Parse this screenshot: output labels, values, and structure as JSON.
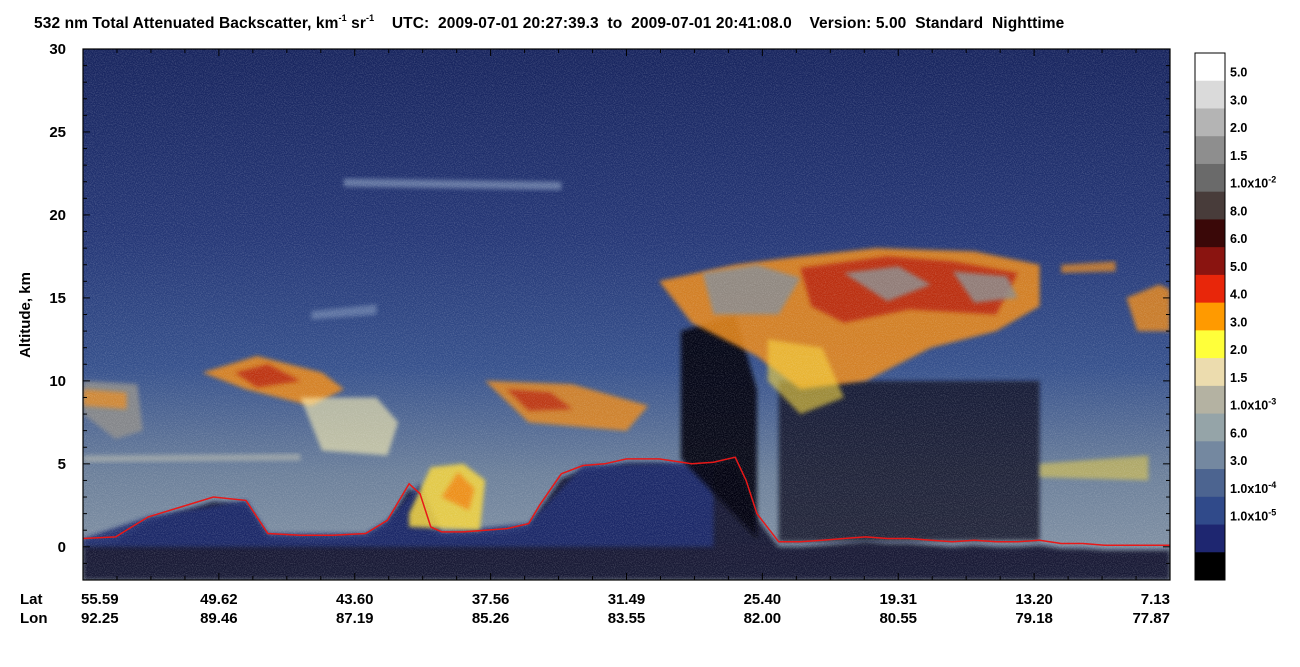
{
  "chart_data": {
    "type": "heatmap",
    "title": {
      "quantity": "532 nm Total Attenuated Backscatter, km",
      "unit_exp1": "-1",
      "unit_mid": " sr",
      "unit_exp2": "-1",
      "utc_text": "    UTC:  2009-07-01 20:27:39.3  to  2009-07-01 20:41:08.0    Version: 5.00  Standard  Nighttime"
    },
    "ylabel": "Altitude, km",
    "ylim": [
      -2,
      30
    ],
    "yticks": [
      0,
      5,
      10,
      15,
      20,
      25,
      30
    ],
    "x_rows": [
      {
        "label": "Lat",
        "values": [
          "55.59",
          "49.62",
          "43.60",
          "37.56",
          "31.49",
          "25.40",
          "19.31",
          "13.20",
          "7.13"
        ]
      },
      {
        "label": "Lon",
        "values": [
          "92.25",
          "89.46",
          "87.19",
          "85.26",
          "83.55",
          "82.00",
          "80.55",
          "79.18",
          "77.87"
        ]
      }
    ],
    "colorbar": {
      "colors": [
        "#ffffff",
        "#dadada",
        "#b4b4b4",
        "#8e8e8e",
        "#6a6a6a",
        "#483c3a",
        "#3a0808",
        "#8a1410",
        "#e8260a",
        "#ff9a00",
        "#ffff3a",
        "#ecdcae",
        "#b4b2a2",
        "#95a4a8",
        "#7488a0",
        "#4c6490",
        "#304a8a",
        "#1e2670",
        "#000000"
      ],
      "labels": [
        {
          "base": "5.0",
          "exp": ""
        },
        {
          "base": "3.0",
          "exp": ""
        },
        {
          "base": "2.0",
          "exp": ""
        },
        {
          "base": "1.5",
          "exp": ""
        },
        {
          "base": "1.0x10",
          "exp": "-2"
        },
        {
          "base": "8.0",
          "exp": ""
        },
        {
          "base": "6.0",
          "exp": ""
        },
        {
          "base": "5.0",
          "exp": ""
        },
        {
          "base": "4.0",
          "exp": ""
        },
        {
          "base": "3.0",
          "exp": ""
        },
        {
          "base": "2.0",
          "exp": ""
        },
        {
          "base": "1.5",
          "exp": ""
        },
        {
          "base": "1.0x10",
          "exp": "-3"
        },
        {
          "base": "6.0",
          "exp": ""
        },
        {
          "base": "3.0",
          "exp": ""
        },
        {
          "base": "1.0x10",
          "exp": "-4"
        },
        {
          "base": "1.0x10",
          "exp": "-5"
        }
      ]
    },
    "surface_line": {
      "color": "#e81818",
      "x_frac": [
        0,
        0.03,
        0.06,
        0.09,
        0.12,
        0.15,
        0.17,
        0.2,
        0.23,
        0.26,
        0.28,
        0.3,
        0.31,
        0.32,
        0.33,
        0.35,
        0.37,
        0.39,
        0.41,
        0.42,
        0.44,
        0.46,
        0.48,
        0.5,
        0.53,
        0.56,
        0.58,
        0.6,
        0.61,
        0.62,
        0.64,
        0.66,
        0.68,
        0.7,
        0.72,
        0.74,
        0.76,
        0.78,
        0.8,
        0.82,
        0.84,
        0.86,
        0.88,
        0.9,
        0.92,
        0.94,
        0.96,
        0.98,
        1
      ],
      "alt_km": [
        0.5,
        0.6,
        1.8,
        2.4,
        3.0,
        2.8,
        0.8,
        0.7,
        0.7,
        0.8,
        1.6,
        3.8,
        3.2,
        1.2,
        0.9,
        0.9,
        1.0,
        1.1,
        1.4,
        2.5,
        4.4,
        4.9,
        5.0,
        5.3,
        5.3,
        5.0,
        5.1,
        5.4,
        4.0,
        2.0,
        0.3,
        0.3,
        0.4,
        0.5,
        0.6,
        0.5,
        0.5,
        0.4,
        0.3,
        0.4,
        0.3,
        0.3,
        0.4,
        0.2,
        0.2,
        0.1,
        0.1,
        0.1,
        0.1
      ]
    },
    "features": [
      {
        "kind": "cirrus-anvil-top",
        "x_frac": [
          0.53,
          0.88
        ],
        "alt_km": [
          9.5,
          18.0
        ]
      },
      {
        "kind": "cloud-layer",
        "x_frac": [
          0.11,
          0.29
        ],
        "alt_km": [
          8.0,
          11.5
        ]
      },
      {
        "kind": "cloud-layer",
        "x_frac": [
          0.37,
          0.52
        ],
        "alt_km": [
          7.0,
          10.0
        ]
      },
      {
        "kind": "aerosol-layer",
        "x_frac": [
          0.3,
          0.37
        ],
        "alt_km": [
          2.0,
          5.0
        ]
      },
      {
        "kind": "faint-layer",
        "x_frac": [
          0.24,
          0.44
        ],
        "alt_km": [
          21.5,
          22.2
        ]
      }
    ]
  }
}
